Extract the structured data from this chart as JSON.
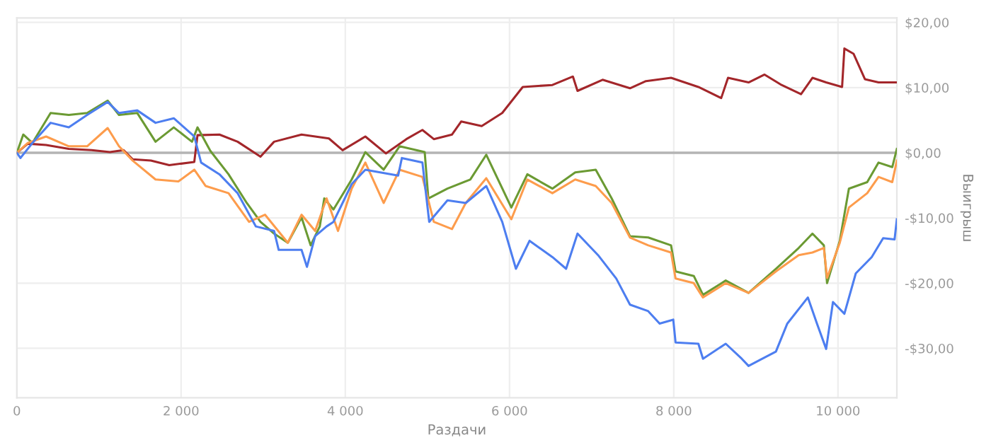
{
  "chart_data": {
    "type": "line",
    "xlabel": "Раздачи",
    "ylabel": "Выигрыш",
    "xlim": [
      0,
      10717
    ],
    "ylim": [
      -37.6,
      20.7
    ],
    "xticks": [
      0,
      {
        "value": 2000,
        "label": "2 000"
      },
      {
        "value": 4000,
        "label": "4 000"
      },
      {
        "value": 6000,
        "label": "6 000"
      },
      {
        "value": 8000,
        "label": "8 000"
      },
      {
        "value": 10000,
        "label": "10 000"
      }
    ],
    "yticks": [
      {
        "value": -30,
        "label": "-$30,00"
      },
      {
        "value": -20,
        "label": "-$20,00"
      },
      {
        "value": -10,
        "label": "-$10,00"
      },
      {
        "value": 0,
        "label": "$0,00"
      },
      {
        "value": 10,
        "label": "$10,00"
      },
      {
        "value": 20,
        "label": "$20,00"
      }
    ],
    "grid": true,
    "legend": false,
    "line_style": "solid",
    "ref_lines": [
      {
        "axis": "y",
        "value": 0,
        "color": "#b4b4b4"
      }
    ],
    "series": [
      {
        "color": "#a3262a",
        "x": [
          0,
          133,
          356,
          633,
          911,
          1133,
          1300,
          1411,
          1633,
          1856,
          2161,
          2200,
          2467,
          2689,
          2967,
          3133,
          3467,
          3800,
          3967,
          4244,
          4494,
          4744,
          4939,
          5078,
          5300,
          5411,
          5661,
          5911,
          6161,
          6522,
          6772,
          6828,
          7133,
          7467,
          7661,
          7967,
          8300,
          8578,
          8661,
          8911,
          9106,
          9300,
          9550,
          9689,
          9856,
          10050,
          10078,
          10189,
          10328,
          10494,
          10717
        ],
        "values": [
          0,
          1.4,
          1.2,
          0.6,
          0.4,
          0.1,
          0.4,
          -1.0,
          -1.2,
          -1.9,
          -1.4,
          2.7,
          2.8,
          1.7,
          -0.6,
          1.7,
          2.8,
          2.2,
          0.4,
          2.5,
          -0.1,
          2.1,
          3.5,
          2.1,
          2.8,
          4.8,
          4.1,
          6.1,
          10.1,
          10.4,
          11.7,
          9.5,
          11.2,
          9.9,
          11.0,
          11.5,
          10.1,
          8.4,
          11.5,
          10.8,
          12.0,
          10.5,
          9.0,
          11.5,
          10.8,
          10.1,
          16.0,
          15.2,
          11.3,
          10.8,
          10.8
        ]
      },
      {
        "color": "#6b9a33",
        "x": [
          0,
          78,
          189,
          411,
          633,
          856,
          1106,
          1244,
          1467,
          1689,
          1911,
          2133,
          2200,
          2356,
          2578,
          2800,
          2967,
          3133,
          3300,
          3467,
          3578,
          3689,
          3744,
          3856,
          4078,
          4244,
          4467,
          4661,
          4967,
          5011,
          5244,
          5522,
          5717,
          6022,
          6217,
          6522,
          6800,
          7050,
          7244,
          7467,
          7689,
          7967,
          8022,
          8244,
          8356,
          8633,
          8911,
          9244,
          9522,
          9689,
          9828,
          9867,
          10022,
          10133,
          10356,
          10494,
          10661,
          10717
        ],
        "values": [
          0,
          2.8,
          1.5,
          6.1,
          5.8,
          6.1,
          8.0,
          5.8,
          6.1,
          1.7,
          3.9,
          1.7,
          3.9,
          0.3,
          -3.3,
          -7.7,
          -10.6,
          -12.4,
          -13.8,
          -9.9,
          -14.2,
          -11.3,
          -7.0,
          -8.7,
          -4.1,
          0.1,
          -2.6,
          1.0,
          0.1,
          -7.0,
          -5.5,
          -4.1,
          -0.3,
          -8.4,
          -3.3,
          -5.5,
          -3.0,
          -2.6,
          -7.0,
          -12.8,
          -13.0,
          -14.2,
          -18.2,
          -18.9,
          -21.8,
          -19.6,
          -21.5,
          -17.8,
          -14.6,
          -12.4,
          -14.2,
          -20.0,
          -13.5,
          -5.5,
          -4.5,
          -1.5,
          -2.2,
          0.6
        ]
      },
      {
        "color": "#fd9c4c",
        "x": [
          0,
          133,
          356,
          633,
          856,
          1106,
          1244,
          1411,
          1689,
          1967,
          2161,
          2300,
          2578,
          2828,
          3022,
          3300,
          3467,
          3633,
          3772,
          3911,
          4078,
          4244,
          4467,
          4661,
          4939,
          5078,
          5300,
          5467,
          5717,
          6022,
          6217,
          6522,
          6800,
          7050,
          7244,
          7467,
          7689,
          7967,
          8022,
          8244,
          8356,
          8633,
          8911,
          9244,
          9522,
          9689,
          9828,
          9867,
          10022,
          10133,
          10356,
          10494,
          10661,
          10717
        ],
        "values": [
          0,
          1.5,
          2.5,
          1.0,
          1.0,
          3.8,
          1.0,
          -1.2,
          -4.1,
          -4.4,
          -2.6,
          -5.1,
          -6.2,
          -10.6,
          -9.5,
          -13.8,
          -9.5,
          -12.0,
          -7.0,
          -12.0,
          -5.5,
          -1.5,
          -7.7,
          -2.6,
          -3.7,
          -10.6,
          -11.7,
          -7.7,
          -3.9,
          -10.2,
          -4.1,
          -6.2,
          -4.1,
          -5.1,
          -7.7,
          -13.0,
          -14.2,
          -15.3,
          -19.3,
          -20.0,
          -22.2,
          -20.0,
          -21.5,
          -18.2,
          -15.7,
          -15.3,
          -14.6,
          -19.2,
          -13.8,
          -8.4,
          -6.2,
          -3.7,
          -4.5,
          -1.2
        ]
      },
      {
        "color": "#4d7ef0",
        "x": [
          0,
          44,
          189,
          411,
          633,
          856,
          1106,
          1244,
          1467,
          1689,
          1911,
          2161,
          2244,
          2467,
          2689,
          2911,
          3133,
          3189,
          3467,
          3533,
          3633,
          3772,
          3856,
          4078,
          4244,
          4644,
          4689,
          4939,
          5022,
          5244,
          5467,
          5717,
          5911,
          6078,
          6244,
          6522,
          6689,
          6828,
          7078,
          7300,
          7467,
          7689,
          7828,
          7994,
          8022,
          8300,
          8356,
          8633,
          8828,
          8911,
          9244,
          9383,
          9633,
          9744,
          9856,
          9939,
          10078,
          10217,
          10411,
          10550,
          10689,
          10717
        ],
        "values": [
          0,
          -0.8,
          1.5,
          4.6,
          3.9,
          5.8,
          7.8,
          6.1,
          6.5,
          4.6,
          5.3,
          2.5,
          -1.5,
          -3.3,
          -6.2,
          -11.3,
          -12.0,
          -14.9,
          -14.9,
          -17.5,
          -12.8,
          -11.3,
          -10.6,
          -4.8,
          -2.6,
          -3.5,
          -0.8,
          -1.5,
          -10.6,
          -7.3,
          -7.7,
          -5.1,
          -10.6,
          -17.8,
          -13.5,
          -16.0,
          -17.8,
          -12.4,
          -15.7,
          -19.3,
          -23.3,
          -24.3,
          -26.2,
          -25.6,
          -29.1,
          -29.3,
          -31.6,
          -29.3,
          -31.6,
          -32.7,
          -30.5,
          -26.2,
          -22.2,
          -26.2,
          -30.1,
          -22.9,
          -24.7,
          -18.5,
          -16.0,
          -13.1,
          -13.3,
          -10.2
        ]
      }
    ]
  }
}
